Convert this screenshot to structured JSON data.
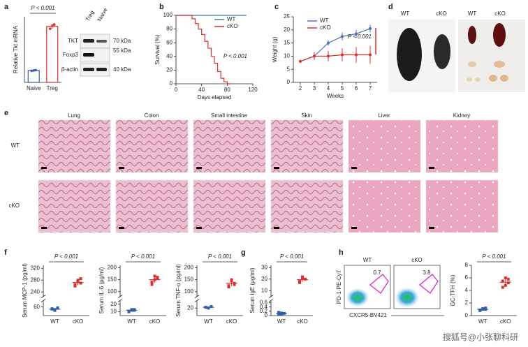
{
  "chart_data": [
    {
      "type": "bar_dot",
      "ylabel": "Relative Tkt mRNA",
      "categories": [
        "Naive",
        "Treg"
      ],
      "values": [
        1.0,
        4.7
      ],
      "errors": [
        0.05,
        0.2
      ],
      "points": [
        [
          0.97,
          1.0,
          1.03
        ],
        [
          4.5,
          4.75,
          4.85
        ]
      ],
      "colors": [
        "#2f5fa8",
        "#d9302c"
      ],
      "ylim": [
        0,
        5.5
      ],
      "annotation": "P < 0.001"
    },
    {
      "type": "line",
      "xlabel": "Days elapsed",
      "ylabel": "Survival (%)",
      "xlim": [
        0,
        120
      ],
      "xticks": [
        0,
        40,
        80,
        120
      ],
      "ylim": [
        0,
        100
      ],
      "yticks": [
        0,
        20,
        40,
        60,
        80,
        100
      ],
      "series": [
        {
          "name": "WT",
          "color": "#4a74b0",
          "x": [
            0,
            110
          ],
          "values": [
            100,
            100
          ]
        },
        {
          "name": "cKO",
          "color": "#d9302c",
          "x": [
            0,
            25,
            25,
            30,
            30,
            35,
            35,
            40,
            40,
            45,
            45,
            50,
            50,
            55,
            55,
            60,
            60,
            65,
            65,
            70,
            70,
            75,
            75,
            80,
            80,
            85
          ],
          "values": [
            100,
            100,
            95,
            95,
            88,
            88,
            80,
            80,
            72,
            72,
            62,
            62,
            52,
            52,
            40,
            40,
            30,
            30,
            18,
            18,
            8,
            8,
            3,
            3,
            0,
            0
          ]
        }
      ],
      "annotation": "P < 0.001"
    },
    {
      "type": "line_error",
      "xlabel": "Weeks",
      "ylabel": "Weight (g)",
      "xlim": [
        1.5,
        7.5
      ],
      "xticks": [
        2,
        3,
        4,
        5,
        6,
        7
      ],
      "ylim": [
        0,
        25
      ],
      "yticks": [
        0,
        5,
        10,
        15,
        20,
        25
      ],
      "series": [
        {
          "name": "WT",
          "color": "#4a74b0",
          "x": [
            2,
            3,
            4,
            5,
            6,
            7
          ],
          "values": [
            8,
            10,
            15,
            17.5,
            18.5,
            20.5
          ],
          "errors": [
            0.5,
            1,
            1,
            1.5,
            1.5,
            1.5
          ]
        },
        {
          "name": "cKO",
          "color": "#d9302c",
          "x": [
            2,
            3,
            4,
            5,
            6,
            7
          ],
          "values": [
            8,
            10,
            10,
            10.5,
            10.5,
            10.5
          ],
          "errors": [
            0.5,
            1.5,
            2,
            2.5,
            3,
            3.5
          ]
        }
      ],
      "annotation": "P < 0.001"
    },
    {
      "type": "dot",
      "ylabel": "Serum MCP-1 (pg/ml)",
      "categories": [
        "WT",
        "cKO"
      ],
      "ylim": [
        40,
        330
      ],
      "break": [
        75,
        225
      ],
      "yticks": [
        60,
        240,
        280,
        320
      ],
      "groups": [
        {
          "color": "#2f5fa8",
          "values": [
            55,
            52,
            58,
            56,
            54,
            57
          ],
          "mean": 55,
          "sd": 2
        },
        {
          "color": "#d9302c",
          "values": [
            265,
            280,
            270,
            260,
            275,
            285
          ],
          "mean": 272,
          "sd": 9
        }
      ],
      "annotation": "P < 0.001"
    },
    {
      "type": "dot",
      "ylabel": "Serum IL-6 (pg/ml)",
      "categories": [
        "WT",
        "cKO"
      ],
      "ylim": [
        5,
        210
      ],
      "break": [
        25,
        80
      ],
      "yticks": [
        10,
        20,
        100,
        150,
        200
      ],
      "groups": [
        {
          "color": "#2f5fa8",
          "values": [
            11,
            13,
            12,
            10,
            12,
            13
          ],
          "mean": 12,
          "sd": 1
        },
        {
          "color": "#d9302c",
          "values": [
            140,
            165,
            155,
            130,
            150,
            160
          ],
          "mean": 150,
          "sd": 12
        }
      ],
      "annotation": "P < 0.001"
    },
    {
      "type": "dot",
      "ylabel": "Serum TNF-α (pg/ml)",
      "categories": [
        "WT",
        "cKO"
      ],
      "ylim": [
        10,
        210
      ],
      "break": [
        30,
        80
      ],
      "yticks": [
        20,
        100,
        150,
        200
      ],
      "groups": [
        {
          "color": "#2f5fa8",
          "values": [
            21,
            20,
            22,
            21,
            20,
            22
          ],
          "mean": 21,
          "sd": 1
        },
        {
          "color": "#d9302c",
          "values": [
            120,
            150,
            135,
            125,
            145,
            130
          ],
          "mean": 135,
          "sd": 11
        }
      ],
      "annotation": "P < 0.001"
    },
    {
      "type": "dot",
      "ylabel": "Serum IgE (μg/ml)",
      "categories": [
        "WT",
        "cKO"
      ],
      "ylim": [
        0,
        32
      ],
      "break": [
        0.7,
        5
      ],
      "yticks": [
        0,
        0.2,
        0.4,
        0.6,
        10,
        20,
        30
      ],
      "groups": [
        {
          "color": "#2f5fa8",
          "values": [
            0.08,
            0.12,
            0.1,
            0.15,
            0.06
          ],
          "mean": 0.1,
          "sd": 0.04
        },
        {
          "color": "#d9302c",
          "values": [
            18,
            21,
            20,
            17,
            22
          ],
          "mean": 19.6,
          "sd": 2
        }
      ],
      "annotation": "P < 0.001"
    },
    {
      "type": "dot",
      "ylabel": "GC-TFH (%)",
      "categories": [
        "WT",
        "cKO"
      ],
      "ylim": [
        0,
        8
      ],
      "yticks": [
        0,
        2,
        4,
        6,
        8
      ],
      "groups": [
        {
          "color": "#2f5fa8",
          "values": [
            0.8,
            1.0,
            1.2,
            0.9,
            1.1,
            1.0
          ],
          "mean": 1.0,
          "sd": 0.15
        },
        {
          "color": "#d9302c",
          "values": [
            4.5,
            6.0,
            5.2,
            5.5,
            4.8,
            5.8
          ],
          "mean": 5.3,
          "sd": 0.6
        }
      ],
      "annotation": "P < 0.001"
    }
  ],
  "panel_labels": [
    "a",
    "b",
    "c",
    "d",
    "e",
    "f",
    "g",
    "h"
  ],
  "western_blot": {
    "columns": [
      "Treg",
      "Naive"
    ],
    "rows": [
      "TKT",
      "Foxp3",
      "β-actin"
    ],
    "markers": [
      "70 kDa",
      "55 kDa",
      "40 kDa"
    ]
  },
  "photos": {
    "labels": [
      "WT",
      "cKO",
      "WT",
      "cKO"
    ]
  },
  "histology": {
    "tissues": [
      "Lung",
      "Colon",
      "Small intestine",
      "Skin",
      "Liver",
      "Kidney"
    ],
    "rows": [
      "WT",
      "cKO"
    ]
  },
  "flow": {
    "samples": [
      "WT",
      "cKO"
    ],
    "gates": [
      "0.7",
      "3.8"
    ],
    "ylabel": "PD-1-PE-Cy7",
    "xlabel": "CXCR5-BV421"
  },
  "watermark": "搜狐号@小张聊科研"
}
